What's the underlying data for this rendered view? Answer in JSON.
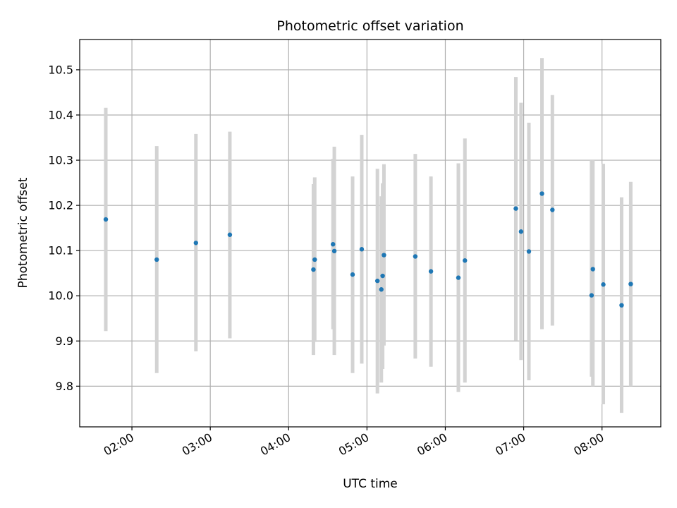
{
  "chart_data": {
    "type": "scatter",
    "title": "Photometric offset variation",
    "xlabel": "UTC time",
    "ylabel": "Photometric offset",
    "x_is_time": true,
    "xlim": [
      "01:20",
      "08:45"
    ],
    "ylim": [
      9.71,
      10.567
    ],
    "grid": true,
    "x_ticks": [
      "02:00",
      "03:00",
      "04:00",
      "05:00",
      "06:00",
      "07:00",
      "08:00"
    ],
    "y_ticks": [
      "9.8",
      "9.9",
      "10.0",
      "10.1",
      "10.2",
      "10.3",
      "10.4",
      "10.5"
    ],
    "colors": {
      "point": "#1f77b4",
      "errorbar": "#d3d3d3",
      "grid": "#b0b0b0"
    },
    "points": [
      {
        "x": "01:40",
        "y": 10.169,
        "lo": 9.922,
        "hi": 10.416
      },
      {
        "x": "02:19",
        "y": 10.08,
        "lo": 9.829,
        "hi": 10.331
      },
      {
        "x": "02:49",
        "y": 10.117,
        "lo": 9.877,
        "hi": 10.358
      },
      {
        "x": "03:15",
        "y": 10.135,
        "lo": 9.906,
        "hi": 10.363
      },
      {
        "x": "04:19",
        "y": 10.058,
        "lo": 9.869,
        "hi": 10.247
      },
      {
        "x": "04:20",
        "y": 10.08,
        "lo": 9.898,
        "hi": 10.262
      },
      {
        "x": "04:34",
        "y": 10.114,
        "lo": 9.926,
        "hi": 10.303
      },
      {
        "x": "04:35",
        "y": 10.099,
        "lo": 9.869,
        "hi": 10.33
      },
      {
        "x": "04:49",
        "y": 10.047,
        "lo": 9.829,
        "hi": 10.264
      },
      {
        "x": "04:56",
        "y": 10.103,
        "lo": 9.85,
        "hi": 10.356
      },
      {
        "x": "05:08",
        "y": 10.033,
        "lo": 9.784,
        "hi": 10.281
      },
      {
        "x": "05:11",
        "y": 10.014,
        "lo": 9.808,
        "hi": 10.22
      },
      {
        "x": "05:12",
        "y": 10.044,
        "lo": 9.838,
        "hi": 10.249
      },
      {
        "x": "05:13",
        "y": 10.09,
        "lo": 9.89,
        "hi": 10.291
      },
      {
        "x": "05:37",
        "y": 10.087,
        "lo": 9.861,
        "hi": 10.314
      },
      {
        "x": "05:49",
        "y": 10.054,
        "lo": 9.843,
        "hi": 10.264
      },
      {
        "x": "06:10",
        "y": 10.04,
        "lo": 9.787,
        "hi": 10.293
      },
      {
        "x": "06:15",
        "y": 10.078,
        "lo": 9.808,
        "hi": 10.348
      },
      {
        "x": "06:54",
        "y": 10.193,
        "lo": 9.901,
        "hi": 10.484
      },
      {
        "x": "06:58",
        "y": 10.142,
        "lo": 9.858,
        "hi": 10.427
      },
      {
        "x": "07:04",
        "y": 10.098,
        "lo": 9.813,
        "hi": 10.383
      },
      {
        "x": "07:14",
        "y": 10.226,
        "lo": 9.926,
        "hi": 10.526
      },
      {
        "x": "07:22",
        "y": 10.19,
        "lo": 9.934,
        "hi": 10.444
      },
      {
        "x": "07:52",
        "y": 10.001,
        "lo": 9.821,
        "hi": 10.3
      },
      {
        "x": "07:53",
        "y": 10.059,
        "lo": 9.8,
        "hi": 10.3
      },
      {
        "x": "08:01",
        "y": 10.025,
        "lo": 9.76,
        "hi": 10.292
      },
      {
        "x": "08:15",
        "y": 9.979,
        "lo": 9.741,
        "hi": 10.218
      },
      {
        "x": "08:22",
        "y": 10.026,
        "lo": 9.8,
        "hi": 10.252
      }
    ]
  }
}
